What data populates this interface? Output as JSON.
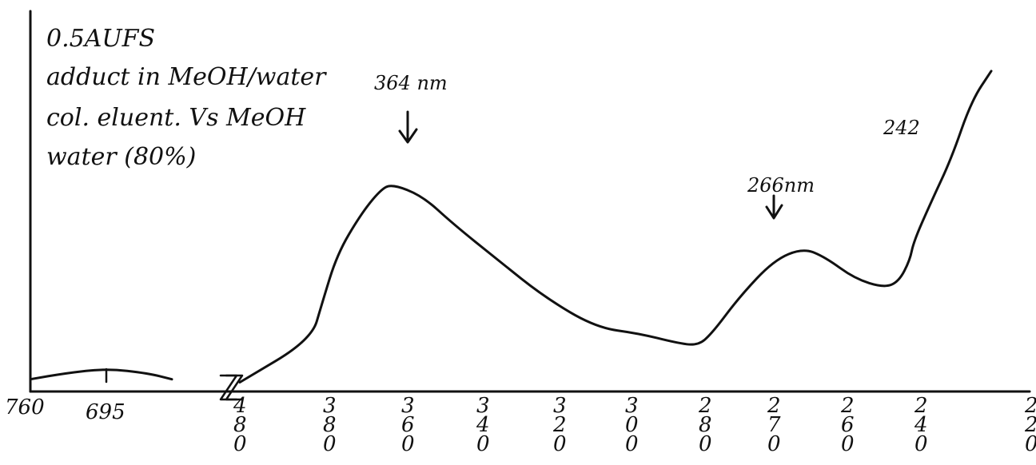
{
  "chart_data": {
    "type": "line",
    "title": "",
    "xlabel": "",
    "ylabel": "",
    "notes": [
      "0.5AUFS",
      "adduct in MeOH/water",
      "col. eluent. Vs MeOH",
      "water (80%)"
    ],
    "annotations": [
      {
        "text": "364 nm",
        "x": 364
      },
      {
        "text": "266nm",
        "x": 266
      },
      {
        "text": "242",
        "x": 242
      }
    ],
    "x_axis": {
      "break_after": 680,
      "ticks": [
        {
          "label": "760",
          "value": 760
        },
        {
          "label": "695",
          "value": 695
        },
        {
          "label": "480",
          "value": 480
        },
        {
          "label": "380",
          "value": 380
        },
        {
          "label": "360",
          "value": 360
        },
        {
          "label": "340",
          "value": 340
        },
        {
          "label": "320",
          "value": 320
        },
        {
          "label": "300",
          "value": 300
        },
        {
          "label": "280",
          "value": 280
        },
        {
          "label": "270",
          "value": 270
        },
        {
          "label": "260",
          "value": 260
        },
        {
          "label": "240",
          "value": 240
        },
        {
          "label": "220",
          "value": 220
        }
      ]
    },
    "series": [
      {
        "segment": "visible",
        "points": [
          [
            760,
            0.04
          ],
          [
            730,
            0.06
          ],
          [
            695,
            0.075
          ],
          [
            660,
            0.06
          ],
          [
            640,
            0.04
          ]
        ]
      },
      {
        "segment": "uv",
        "points": [
          [
            480,
            0.03
          ],
          [
            400,
            0.17
          ],
          [
            388,
            0.29
          ],
          [
            378,
            0.45
          ],
          [
            372,
            0.58
          ],
          [
            367,
            0.66
          ],
          [
            364,
            0.68
          ],
          [
            356,
            0.64
          ],
          [
            348,
            0.55
          ],
          [
            336,
            0.43
          ],
          [
            324,
            0.31
          ],
          [
            310,
            0.21
          ],
          [
            298,
            0.19
          ],
          [
            288,
            0.16
          ],
          [
            282,
            0.15
          ],
          [
            279,
            0.19
          ],
          [
            275,
            0.31
          ],
          [
            270,
            0.43
          ],
          [
            266,
            0.47
          ],
          [
            263,
            0.44
          ],
          [
            258,
            0.37
          ],
          [
            250,
            0.34
          ],
          [
            246,
            0.36
          ],
          [
            243,
            0.43
          ],
          [
            242,
            0.49
          ],
          [
            238,
            0.62
          ],
          [
            234,
            0.76
          ],
          [
            230,
            0.95
          ],
          [
            226,
            1.05
          ]
        ]
      }
    ],
    "ylim": [
      0,
      1.1
    ],
    "grid": false
  }
}
